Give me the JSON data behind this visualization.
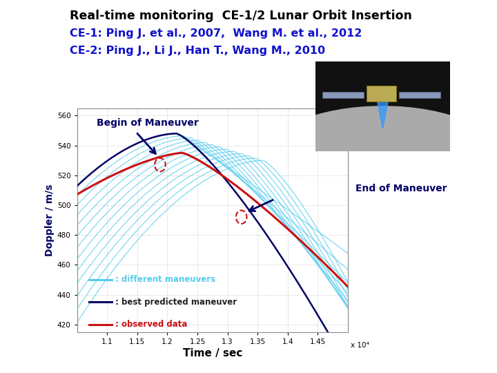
{
  "title_line1": "Real-time monitoring  CE-1/2 Lunar Orbit Insertion",
  "title_line2": "CE-1: Ping J. et al., 2007,  Wang M. et al., 2012",
  "title_line3": "CE-2: Ping J., Li J., Han T., Wang M., 2010",
  "title1_color": "#000000",
  "title2_color": "#1111CC",
  "ylabel": "Doppler / m/s",
  "xlabel": "Time / sec",
  "xscale_note": "x 10⁴",
  "xlim": [
    1.05,
    1.5
  ],
  "ylim": [
    415,
    565
  ],
  "yticks": [
    420,
    440,
    460,
    480,
    500,
    520,
    540,
    560
  ],
  "xticks": [
    1.1,
    1.15,
    1.2,
    1.25,
    1.3,
    1.35,
    1.4,
    1.45
  ],
  "grid_color": "#aaaaaa",
  "bg_color": "#ffffff",
  "cyan_color": "#55CCEE",
  "navy_color": "#000066",
  "red_color": "#CC1111",
  "begin_label": "Begin of Maneuver",
  "end_label": "End of Maneuver",
  "legend_cyan": ": different maneuvers",
  "legend_navy": ": best predicted maneuver",
  "legend_red": ": observed data",
  "slide_bg": "#ffffff"
}
